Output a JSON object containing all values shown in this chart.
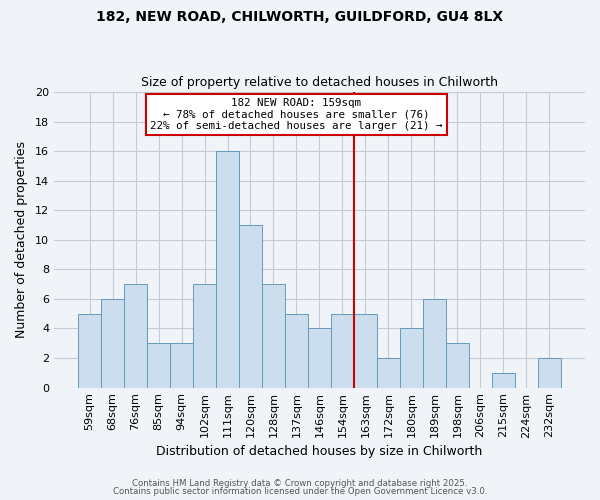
{
  "title1": "182, NEW ROAD, CHILWORTH, GUILDFORD, GU4 8LX",
  "title2": "Size of property relative to detached houses in Chilworth",
  "xlabel": "Distribution of detached houses by size in Chilworth",
  "ylabel": "Number of detached properties",
  "bar_labels": [
    "59sqm",
    "68sqm",
    "76sqm",
    "85sqm",
    "94sqm",
    "102sqm",
    "111sqm",
    "120sqm",
    "128sqm",
    "137sqm",
    "146sqm",
    "154sqm",
    "163sqm",
    "172sqm",
    "180sqm",
    "189sqm",
    "198sqm",
    "206sqm",
    "215sqm",
    "224sqm",
    "232sqm"
  ],
  "bar_values": [
    5,
    6,
    7,
    3,
    3,
    7,
    16,
    11,
    7,
    5,
    4,
    5,
    5,
    2,
    4,
    6,
    3,
    0,
    1,
    0,
    2
  ],
  "bar_color": "#ccdded",
  "bar_edge_color": "#6699bb",
  "vline_color": "#cc0000",
  "annotation_title": "182 NEW ROAD: 159sqm",
  "annotation_line1": "← 78% of detached houses are smaller (76)",
  "annotation_line2": "22% of semi-detached houses are larger (21) →",
  "annotation_box_color": "#cc0000",
  "footer1": "Contains HM Land Registry data © Crown copyright and database right 2025.",
  "footer2": "Contains public sector information licensed under the Open Government Licence v3.0.",
  "background_color": "#f0f4f8",
  "grid_color": "#c0ccd8",
  "ylim": [
    0,
    20
  ],
  "yticks": [
    0,
    2,
    4,
    6,
    8,
    10,
    12,
    14,
    16,
    18,
    20
  ],
  "vline_bar_index": 12
}
